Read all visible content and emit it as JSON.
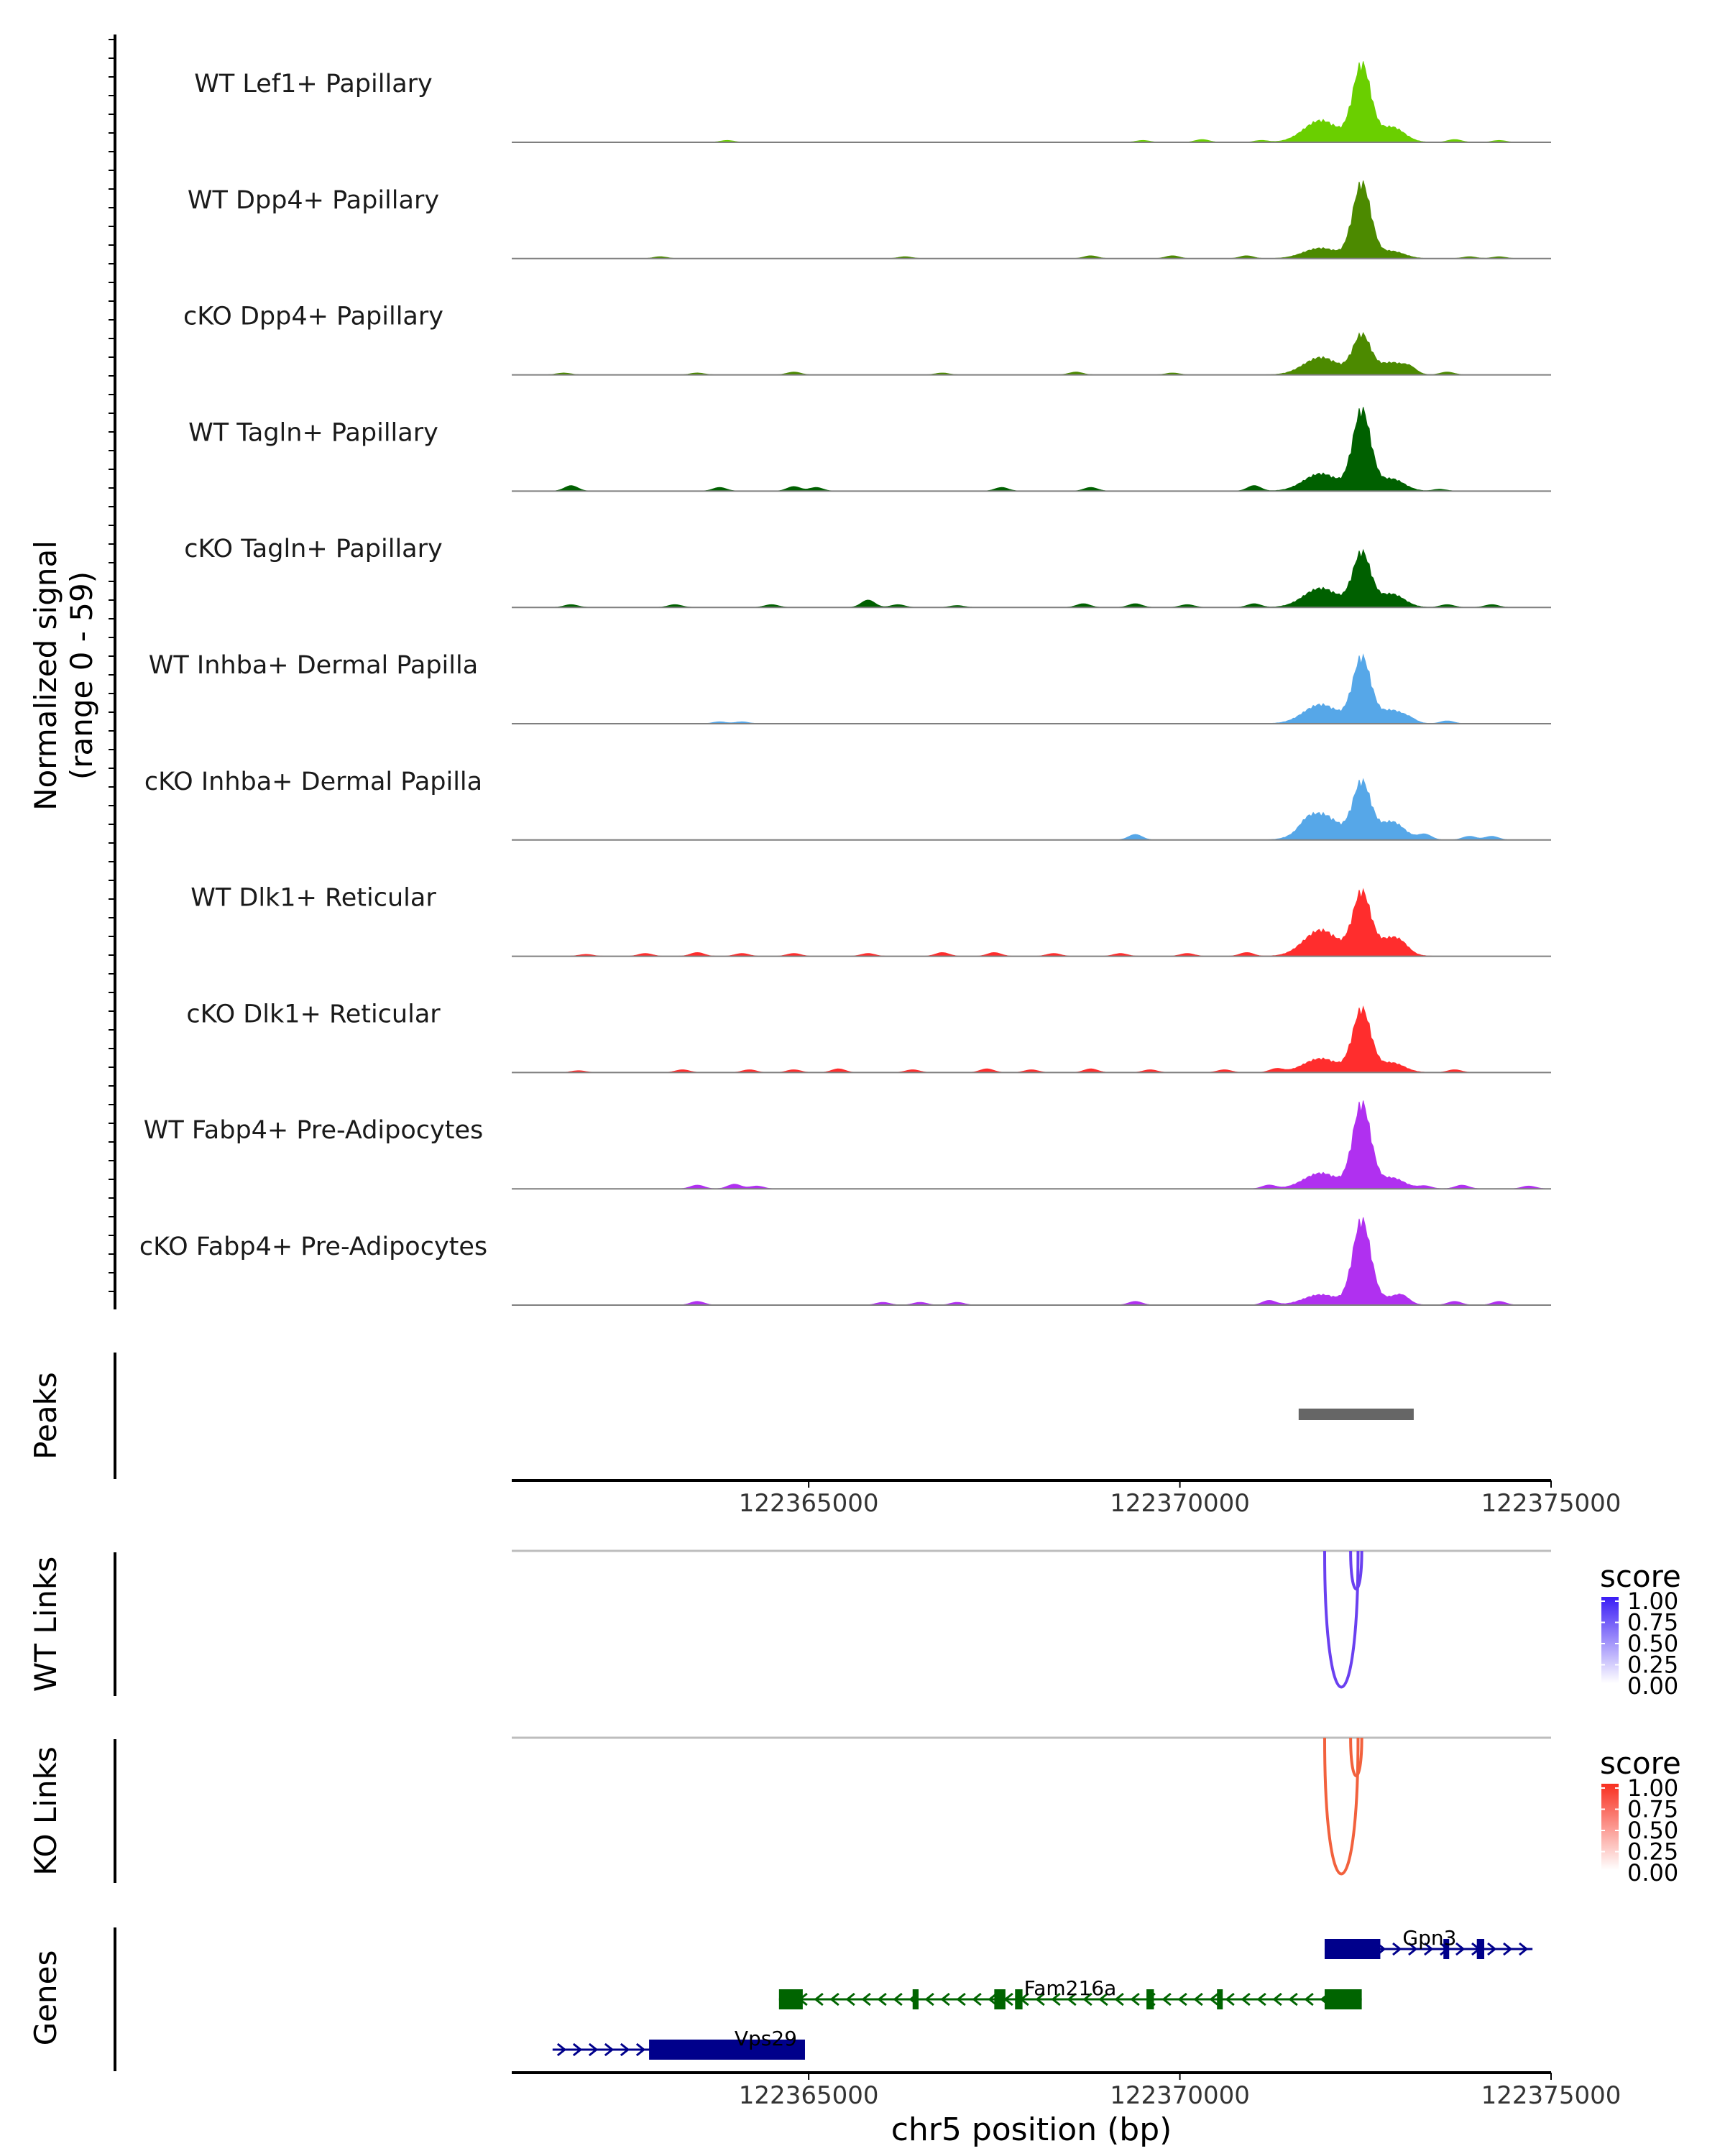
{
  "chart_data": {
    "type": "genome-track-plot",
    "chromosome": "chr5",
    "xlim": [
      122361000,
      122375000
    ],
    "xlabel": "chr5 position (bp)",
    "x_ticks": [
      "122365000",
      "122370000",
      "122375000"
    ],
    "x_tick_values": [
      122365000,
      122370000,
      122375000
    ],
    "coverage": {
      "ylabel_line1": "Normalized signal",
      "ylabel_line2": "(range 0 - 59)",
      "ylim": [
        0,
        59
      ],
      "tracks": [
        {
          "name": "WT Lef1+ Papillary",
          "color": "#6ACF00",
          "peak_height": 0.88,
          "shoulder": 0.25,
          "noise": [
            [
              122363900,
              0.02
            ],
            [
              122369500,
              0.02
            ],
            [
              122370300,
              0.03
            ],
            [
              122371100,
              0.02
            ],
            [
              122373700,
              0.03
            ],
            [
              122374300,
              0.02
            ]
          ]
        },
        {
          "name": "WT Dpp4+ Papillary",
          "color": "#4C8A00",
          "peak_height": 0.86,
          "shoulder": 0.12,
          "noise": [
            [
              122363000,
              0.02
            ],
            [
              122366300,
              0.02
            ],
            [
              122368800,
              0.03
            ],
            [
              122369900,
              0.03
            ],
            [
              122370900,
              0.03
            ],
            [
              122373900,
              0.02
            ],
            [
              122374300,
              0.02
            ]
          ]
        },
        {
          "name": "cKO Dpp4+ Papillary",
          "color": "#4C8A00",
          "peak_height": 0.45,
          "shoulder": 0.2,
          "noise": [
            [
              122361700,
              0.02
            ],
            [
              122363500,
              0.02
            ],
            [
              122364800,
              0.03
            ],
            [
              122366800,
              0.02
            ],
            [
              122368600,
              0.03
            ],
            [
              122369900,
              0.02
            ],
            [
              122373100,
              0.06
            ],
            [
              122373600,
              0.03
            ]
          ]
        },
        {
          "name": "WT Tagln+ Papillary",
          "color": "#006000",
          "peak_height": 0.92,
          "shoulder": 0.2,
          "noise": [
            [
              122361800,
              0.06
            ],
            [
              122363800,
              0.04
            ],
            [
              122364800,
              0.05
            ],
            [
              122365100,
              0.04
            ],
            [
              122367600,
              0.04
            ],
            [
              122368800,
              0.04
            ],
            [
              122371000,
              0.06
            ],
            [
              122373500,
              0.02
            ]
          ]
        },
        {
          "name": "cKO Tagln+ Papillary",
          "color": "#006000",
          "peak_height": 0.62,
          "shoulder": 0.22,
          "noise": [
            [
              122361800,
              0.03
            ],
            [
              122363200,
              0.03
            ],
            [
              122364500,
              0.03
            ],
            [
              122365800,
              0.08
            ],
            [
              122366200,
              0.03
            ],
            [
              122367000,
              0.02
            ],
            [
              122368700,
              0.04
            ],
            [
              122369400,
              0.04
            ],
            [
              122370100,
              0.03
            ],
            [
              122371000,
              0.04
            ],
            [
              122373600,
              0.03
            ],
            [
              122374200,
              0.03
            ]
          ]
        },
        {
          "name": "WT Inhba+ Dermal Papilla",
          "color": "#56A7E8",
          "peak_height": 0.75,
          "shoulder": 0.22,
          "noise": [
            [
              122363800,
              0.02
            ],
            [
              122364100,
              0.02
            ],
            [
              122373100,
              0.03
            ],
            [
              122373600,
              0.03
            ]
          ]
        },
        {
          "name": "cKO Inhba+ Dermal Papilla",
          "color": "#56A7E8",
          "peak_height": 0.65,
          "shoulder": 0.3,
          "noise": [
            [
              122369400,
              0.06
            ],
            [
              122371700,
              0.05
            ],
            [
              122373300,
              0.06
            ],
            [
              122373900,
              0.04
            ],
            [
              122374200,
              0.04
            ]
          ]
        },
        {
          "name": "WT Dlk1+ Reticular",
          "color": "#FF2D2D",
          "peak_height": 0.72,
          "shoulder": 0.3,
          "noise": [
            [
              122362000,
              0.02
            ],
            [
              122362800,
              0.03
            ],
            [
              122363500,
              0.04
            ],
            [
              122364100,
              0.03
            ],
            [
              122364800,
              0.03
            ],
            [
              122365800,
              0.03
            ],
            [
              122366800,
              0.04
            ],
            [
              122367500,
              0.04
            ],
            [
              122368300,
              0.03
            ],
            [
              122369200,
              0.03
            ],
            [
              122370100,
              0.03
            ],
            [
              122370900,
              0.04
            ],
            [
              122373000,
              0.03
            ]
          ]
        },
        {
          "name": "cKO Dlk1+ Reticular",
          "color": "#FF2D2D",
          "peak_height": 0.72,
          "shoulder": 0.16,
          "noise": [
            [
              122361900,
              0.02
            ],
            [
              122363300,
              0.03
            ],
            [
              122364200,
              0.03
            ],
            [
              122364800,
              0.03
            ],
            [
              122365400,
              0.04
            ],
            [
              122366400,
              0.03
            ],
            [
              122367400,
              0.04
            ],
            [
              122368000,
              0.03
            ],
            [
              122368800,
              0.04
            ],
            [
              122369600,
              0.03
            ],
            [
              122370600,
              0.03
            ],
            [
              122371300,
              0.04
            ],
            [
              122373700,
              0.03
            ]
          ]
        },
        {
          "name": "WT Fabp4+ Pre-Adipocytes",
          "color": "#B030F0",
          "peak_height": 0.97,
          "shoulder": 0.18,
          "noise": [
            [
              122363500,
              0.04
            ],
            [
              122364000,
              0.05
            ],
            [
              122364300,
              0.03
            ],
            [
              122371200,
              0.04
            ],
            [
              122373300,
              0.03
            ],
            [
              122373800,
              0.04
            ],
            [
              122374700,
              0.03
            ]
          ]
        },
        {
          "name": "cKO Fabp4+ Pre-Adipocytes",
          "color": "#B030F0",
          "peak_height": 0.97,
          "shoulder": 0.12,
          "noise": [
            [
              122363500,
              0.04
            ],
            [
              122366000,
              0.03
            ],
            [
              122366500,
              0.03
            ],
            [
              122367000,
              0.03
            ],
            [
              122369400,
              0.04
            ],
            [
              122371200,
              0.05
            ],
            [
              122373000,
              0.06
            ],
            [
              122373700,
              0.04
            ],
            [
              122374300,
              0.04
            ]
          ]
        }
      ]
    },
    "peaks": {
      "label": "Peaks",
      "color": "#666666",
      "regions": [
        {
          "start": 122371600,
          "end": 122373150
        }
      ]
    },
    "links": [
      {
        "label": "WT Links",
        "legend_title": "score",
        "legend_ticks": [
          "1.00",
          "0.75",
          "0.50",
          "0.25",
          "0.00"
        ],
        "colors": {
          "high": "#3A1CF5",
          "low": "#FFFFFF",
          "arc": "#6A40F0"
        },
        "arcs": [
          {
            "start": 122371950,
            "end": 122372400,
            "depth": 1.0
          },
          {
            "start": 122372300,
            "end": 122372450,
            "depth": 0.28
          }
        ]
      },
      {
        "label": "KO Links",
        "legend_title": "score",
        "legend_ticks": [
          "1.00",
          "0.75",
          "0.50",
          "0.25",
          "0.00"
        ],
        "colors": {
          "high": "#F82F1F",
          "low": "#FFFFFF",
          "arc": "#F2613D"
        },
        "arcs": [
          {
            "start": 122371950,
            "end": 122372400,
            "depth": 1.0
          },
          {
            "start": 122372300,
            "end": 122372450,
            "depth": 0.28
          }
        ]
      }
    ],
    "genes": {
      "label": "Genes",
      "items": [
        {
          "name": "Gpn3",
          "strand": "+",
          "color": "#00008B",
          "row": 0,
          "start": 122371950,
          "end": 122374750,
          "exons": [
            [
              122371950,
              122372700
            ],
            [
              122373550,
              122373600
            ],
            [
              122374000,
              122374100
            ]
          ]
        },
        {
          "name": "Fam216a",
          "strand": "-",
          "color": "#006400",
          "row": 1,
          "start": 122364600,
          "end": 122372450,
          "exons": [
            [
              122364600,
              122364920
            ],
            [
              122366400,
              122366480
            ],
            [
              122367500,
              122367650
            ],
            [
              122367780,
              122367880
            ],
            [
              122369550,
              122369650
            ],
            [
              122370500,
              122370560
            ],
            [
              122371950,
              122372450
            ]
          ]
        },
        {
          "name": "Vps29",
          "strand": "+",
          "color": "#00008B",
          "row": 2,
          "start": 122361550,
          "end": 122364950,
          "exons": [
            [
              122362850,
              122364950
            ]
          ]
        }
      ]
    }
  }
}
